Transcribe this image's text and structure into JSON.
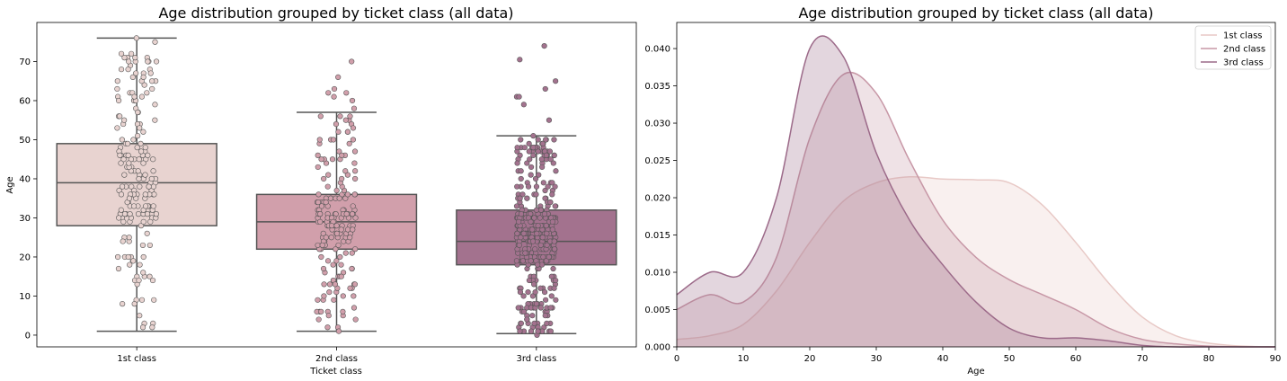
{
  "chart_data": [
    {
      "type": "box",
      "title": "Age distribution grouped by ticket class (all data)",
      "xlabel": "Ticket class",
      "ylabel": "Age",
      "categories": [
        "1st class",
        "2nd class",
        "3rd class"
      ],
      "ylim": [
        -3,
        80
      ],
      "yticks": [
        0,
        10,
        20,
        30,
        40,
        50,
        60,
        70
      ],
      "boxes": [
        {
          "name": "1st class",
          "q1": 28,
          "median": 39,
          "q3": 49,
          "whisker_low": 1,
          "whisker_high": 76,
          "color": "#e8d3d0",
          "outliers": [],
          "points_range": [
            1,
            76
          ]
        },
        {
          "name": "2nd class",
          "q1": 22,
          "median": 29,
          "q3": 36,
          "whisker_low": 1,
          "whisker_high": 57,
          "color": "#d19fab",
          "outliers": [
            58,
            60,
            61,
            62,
            62,
            63,
            66,
            70
          ],
          "points_range": [
            1,
            57
          ]
        },
        {
          "name": "3rd class",
          "q1": 18,
          "median": 24,
          "q3": 32,
          "whisker_low": 0.4,
          "whisker_high": 51,
          "color": "#a3728e",
          "outliers": [
            55,
            59,
            61,
            61,
            63,
            65,
            70.5,
            74
          ],
          "points_range": [
            0.4,
            51
          ]
        }
      ]
    },
    {
      "type": "area",
      "title": "Age distribution grouped by ticket class (all data)",
      "xlabel": "Age",
      "ylabel": "",
      "xlim": [
        0,
        90
      ],
      "ylim": [
        0,
        0.0435
      ],
      "xticks": [
        0,
        10,
        20,
        30,
        40,
        50,
        60,
        70,
        80,
        90
      ],
      "yticks": [
        0.0,
        0.005,
        0.01,
        0.015,
        0.02,
        0.025,
        0.03,
        0.035,
        0.04
      ],
      "ytick_labels": [
        "0.000",
        "0.005",
        "0.010",
        "0.015",
        "0.020",
        "0.025",
        "0.030",
        "0.035",
        "0.040"
      ],
      "legend_position": "top-right",
      "x": [
        0,
        5,
        10,
        15,
        20,
        25,
        30,
        35,
        40,
        45,
        50,
        55,
        60,
        65,
        70,
        75,
        80,
        85,
        90
      ],
      "series": [
        {
          "name": "1st class",
          "color": "#e8c9c6",
          "values": [
            0.001,
            0.0015,
            0.003,
            0.0075,
            0.014,
            0.0195,
            0.022,
            0.0228,
            0.0225,
            0.0224,
            0.022,
            0.019,
            0.014,
            0.0085,
            0.004,
            0.0015,
            0.0005,
            0.0001,
            0.0
          ]
        },
        {
          "name": "2nd class",
          "color": "#c797a6",
          "values": [
            0.005,
            0.007,
            0.006,
            0.012,
            0.028,
            0.0365,
            0.034,
            0.025,
            0.017,
            0.012,
            0.009,
            0.007,
            0.005,
            0.0025,
            0.001,
            0.0004,
            0.0001,
            0.0,
            0.0
          ]
        },
        {
          "name": "3rd class",
          "color": "#9c6a89",
          "values": [
            0.007,
            0.01,
            0.01,
            0.02,
            0.04,
            0.039,
            0.026,
            0.017,
            0.011,
            0.006,
            0.0025,
            0.0012,
            0.0012,
            0.0008,
            0.0002,
            0.0,
            0.0,
            0.0,
            0.0
          ]
        }
      ]
    }
  ]
}
